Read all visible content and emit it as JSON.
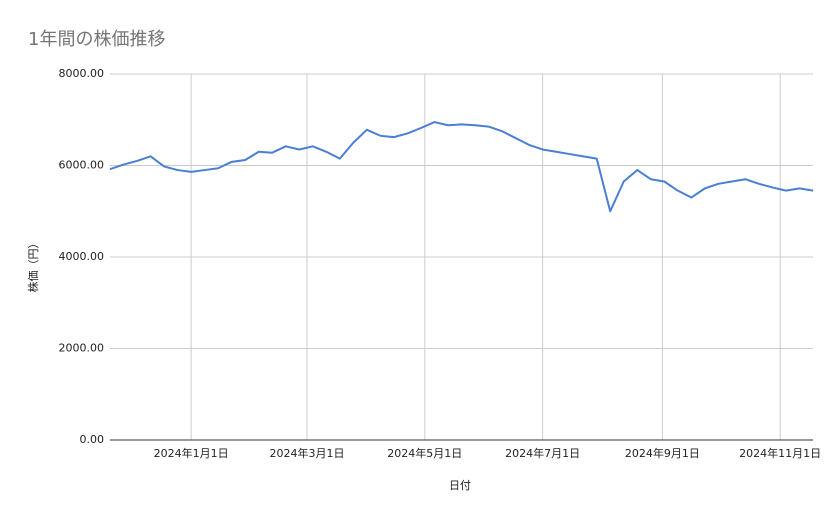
{
  "chart_data": {
    "type": "line",
    "title": "1年間の株価推移",
    "x_label": "日付",
    "y_label": "株価（円）",
    "x": [
      "2023-11-20",
      "2023-11-27",
      "2023-12-04",
      "2023-12-11",
      "2023-12-18",
      "2023-12-25",
      "2024-01-01",
      "2024-01-08",
      "2024-01-15",
      "2024-01-22",
      "2024-01-29",
      "2024-02-05",
      "2024-02-12",
      "2024-02-19",
      "2024-02-26",
      "2024-03-04",
      "2024-03-11",
      "2024-03-18",
      "2024-03-25",
      "2024-04-01",
      "2024-04-08",
      "2024-04-15",
      "2024-04-22",
      "2024-04-29",
      "2024-05-06",
      "2024-05-13",
      "2024-05-20",
      "2024-05-27",
      "2024-06-03",
      "2024-06-10",
      "2024-06-17",
      "2024-06-24",
      "2024-07-01",
      "2024-07-08",
      "2024-07-15",
      "2024-07-22",
      "2024-07-29",
      "2024-08-05",
      "2024-08-12",
      "2024-08-19",
      "2024-08-26",
      "2024-09-02",
      "2024-09-09",
      "2024-09-16",
      "2024-09-23",
      "2024-09-30",
      "2024-10-07",
      "2024-10-14",
      "2024-10-21",
      "2024-10-28",
      "2024-11-04",
      "2024-11-11",
      "2024-11-18"
    ],
    "series": [
      {
        "name": "株価",
        "color": "#4a7fd4",
        "values": [
          5920,
          6020,
          6100,
          6200,
          5980,
          5900,
          5860,
          5900,
          5940,
          6080,
          6120,
          6300,
          6280,
          6420,
          6350,
          6420,
          6300,
          6150,
          6500,
          6780,
          6650,
          6620,
          6700,
          6820,
          6950,
          6880,
          6900,
          6880,
          6850,
          6750,
          6600,
          6450,
          6350,
          6300,
          6250,
          6200,
          6150,
          5000,
          5650,
          5900,
          5700,
          5650,
          5450,
          5300,
          5500,
          5600,
          5650,
          5700,
          5600,
          5520,
          5450,
          5500,
          5450
        ]
      }
    ],
    "xlim": [
      "2023-11-20",
      "2024-11-18"
    ],
    "xticks": [
      {
        "value": "2024-01-01",
        "label": "2024年1月1日"
      },
      {
        "value": "2024-03-01",
        "label": "2024年3月1日"
      },
      {
        "value": "2024-05-01",
        "label": "2024年5月1日"
      },
      {
        "value": "2024-07-01",
        "label": "2024年7月1日"
      },
      {
        "value": "2024-09-01",
        "label": "2024年9月1日"
      },
      {
        "value": "2024-11-01",
        "label": "2024年11月1日"
      }
    ],
    "ylim": [
      0,
      8000
    ],
    "yticks": [
      {
        "value": 0,
        "label": "0.00"
      },
      {
        "value": 2000,
        "label": "2000.00"
      },
      {
        "value": 4000,
        "label": "4000.00"
      },
      {
        "value": 6000,
        "label": "6000.00"
      },
      {
        "value": 8000,
        "label": "8000.00"
      }
    ],
    "grid": true
  }
}
